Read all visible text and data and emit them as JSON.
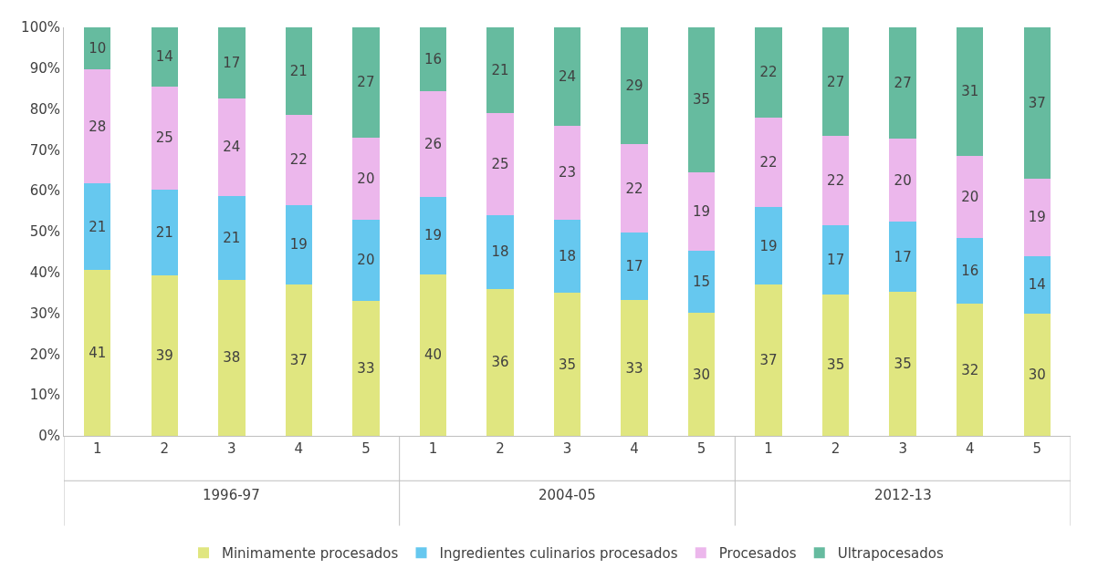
{
  "chart_data": {
    "type": "bar",
    "stacked": true,
    "categories": [
      "1",
      "2",
      "3",
      "4",
      "5",
      "1",
      "2",
      "3",
      "4",
      "5",
      "1",
      "2",
      "3",
      "4",
      "5"
    ],
    "series": [
      {
        "name": "Minimamente procesados",
        "color": "#e0e680",
        "values": [
          40.6,
          39.3,
          38.2,
          37.1,
          33,
          39.6,
          36,
          35,
          33.2,
          30.1,
          37,
          34.6,
          35.3,
          32.3,
          30
        ],
        "value_labels": [
          "41",
          "39",
          "38",
          "37",
          "33",
          "40",
          "36",
          "35",
          "33",
          "30",
          "37",
          "35",
          "35",
          "32",
          "30"
        ]
      },
      {
        "name": "Ingredientes culinarios procesados",
        "color": "#66c8ef",
        "values": [
          21.2,
          20.9,
          20.6,
          19.4,
          20,
          18.9,
          18,
          18,
          16.6,
          15.2,
          19,
          16.9,
          17.1,
          16.1,
          14
        ],
        "value_labels": [
          "21",
          "21",
          "21",
          "19",
          "20",
          "19",
          "18",
          "18",
          "17",
          "15",
          "19",
          "17",
          "17",
          "16",
          "14"
        ]
      },
      {
        "name": "Procesados",
        "color": "#ecb7ec",
        "values": [
          27.9,
          25.4,
          23.8,
          22.1,
          20,
          25.8,
          25,
          23,
          21.6,
          19.3,
          22,
          21.9,
          20.4,
          20.2,
          19
        ],
        "value_labels": [
          "28",
          "25",
          "24",
          "22",
          "20",
          "26",
          "25",
          "23",
          "22",
          "19",
          "22",
          "22",
          "20",
          "20",
          "19"
        ]
      },
      {
        "name": "Ultrapocesados",
        "color": "#66bb9f",
        "values": [
          10.3,
          14.4,
          17.4,
          21.4,
          27,
          15.7,
          21,
          24,
          28.6,
          35.4,
          22,
          26.6,
          27.2,
          31.4,
          37
        ],
        "value_labels": [
          "10",
          "14",
          "17",
          "21",
          "27",
          "16",
          "21",
          "24",
          "29",
          "35",
          "22",
          "27",
          "27",
          "31",
          "37"
        ]
      }
    ],
    "annotations": [
      "1996-97",
      "2004-05",
      "2012-13"
    ],
    "ylim": [
      0,
      100
    ],
    "yticks": [
      {
        "value": 0,
        "label": "0%"
      },
      {
        "value": 10,
        "label": "10%"
      },
      {
        "value": 20,
        "label": "20%"
      },
      {
        "value": 30,
        "label": "30%"
      },
      {
        "value": 40,
        "label": "40%"
      },
      {
        "value": 50,
        "label": "50%"
      },
      {
        "value": 60,
        "label": "60%"
      },
      {
        "value": 70,
        "label": "70%"
      },
      {
        "value": 80,
        "label": "80%"
      },
      {
        "value": 90,
        "label": "90%"
      },
      {
        "value": 100,
        "label": "100%"
      }
    ],
    "legend": "bottom"
  }
}
